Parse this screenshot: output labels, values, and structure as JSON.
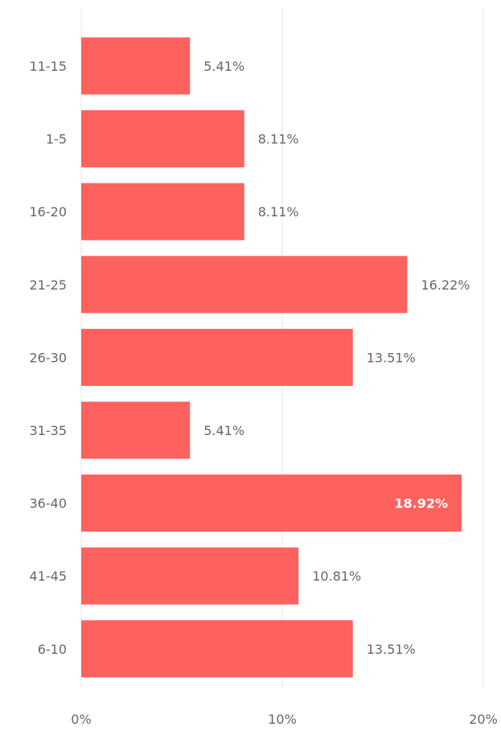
{
  "chart_data": {
    "type": "bar",
    "orientation": "horizontal",
    "categories": [
      "11-15",
      "1-5",
      "16-20",
      "21-25",
      "26-30",
      "31-35",
      "36-40",
      "41-45",
      "6-10"
    ],
    "values": [
      5.41,
      8.11,
      8.11,
      16.22,
      13.51,
      5.41,
      18.92,
      10.81,
      13.51
    ],
    "data_labels": [
      "5.41%",
      "8.11%",
      "8.11%",
      "16.22%",
      "13.51%",
      "5.41%",
      "18.92%",
      "10.81%",
      "13.51%"
    ],
    "x_ticks": [
      "0%",
      "10%",
      "20%"
    ],
    "x_tick_values": [
      0,
      10,
      20
    ],
    "xlim": [
      0,
      20
    ],
    "grid": true,
    "bar_color": "#fd625e",
    "label_color": "#666666",
    "inside_label_color": "#ffffff"
  }
}
